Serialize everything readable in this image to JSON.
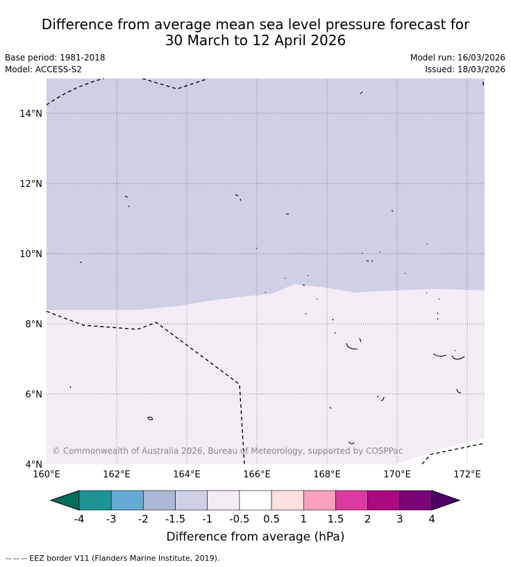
{
  "title": {
    "line1": "Difference from average mean sea level pressure forecast for",
    "line2": "30 March to 12 April 2026"
  },
  "meta": {
    "base_period": "Base period: 1981-2018",
    "model": "Model: ACCESS-S2",
    "model_run": "Model run: 16/03/2026",
    "issued": "Issued: 18/03/2026"
  },
  "map": {
    "lat_labels": [
      "14°N",
      "12°N",
      "10°N",
      "8°N",
      "6°N",
      "4°N"
    ],
    "lon_labels": [
      "160°E",
      "162°E",
      "164°E",
      "166°E",
      "168°E",
      "170°E",
      "172°E"
    ],
    "copyright": "© Commonwealth of Australia 2026, Bureau of Meteorology, supported by COSPPac",
    "fields": [
      {
        "name": "-1 to -1.5 hPa",
        "color": "#d0d0e4"
      },
      {
        "name": "-0.5 to -1 hPa",
        "color": "#f3ecf5"
      }
    ]
  },
  "colorbar": {
    "ticks": [
      "-4",
      "-3",
      "-2",
      "-1.5",
      "-1",
      "-0.5",
      "0.5",
      "1",
      "1.5",
      "2",
      "3",
      "4"
    ],
    "colors": [
      "#1d9396",
      "#66aad6",
      "#aeb6d5",
      "#d0d0e4",
      "#f3ecf5",
      "#ffffff",
      "#ffe0e0",
      "#f9a0bc",
      "#dc3aa2",
      "#ab0a80",
      "#7a0478"
    ],
    "under_color": "#006f5c",
    "over_color": "#4c0068",
    "label": "Difference from average (hPa)"
  },
  "footnote": "--  --  -- EEZ border V11 (Flanders Marine Institute, 2019)."
}
